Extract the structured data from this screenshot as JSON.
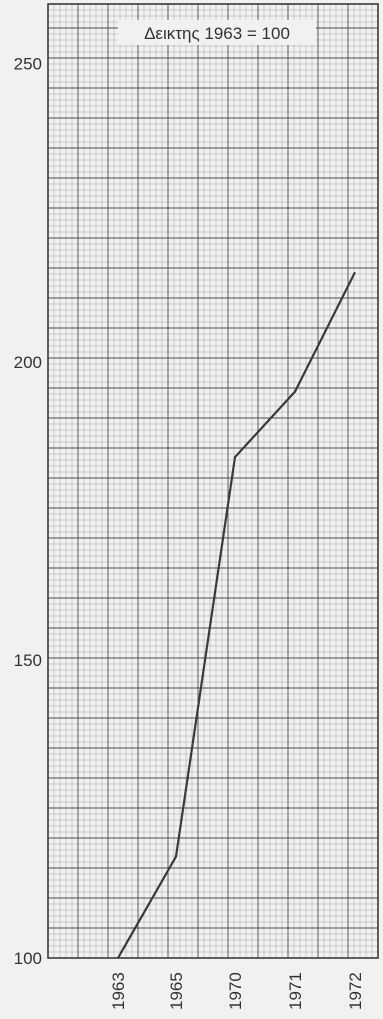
{
  "chart_data": {
    "type": "line",
    "title": "Δεικτης 1963 = 100",
    "xlabel": "",
    "ylabel": "",
    "categories": [
      "1963",
      "1965",
      "1970",
      "1971",
      "1972"
    ],
    "series": [
      {
        "values": [
          100,
          117,
          184,
          195,
          215
        ]
      }
    ],
    "ylim": [
      100,
      260
    ],
    "yticks": [
      100,
      150,
      200,
      250
    ],
    "grid": true
  },
  "colors": {
    "paper": "#f1f1ef",
    "grid_minor": "#9c9c9c",
    "grid_major": "#4a4a4a",
    "line": "#3a3a3a",
    "text": "#333333"
  }
}
